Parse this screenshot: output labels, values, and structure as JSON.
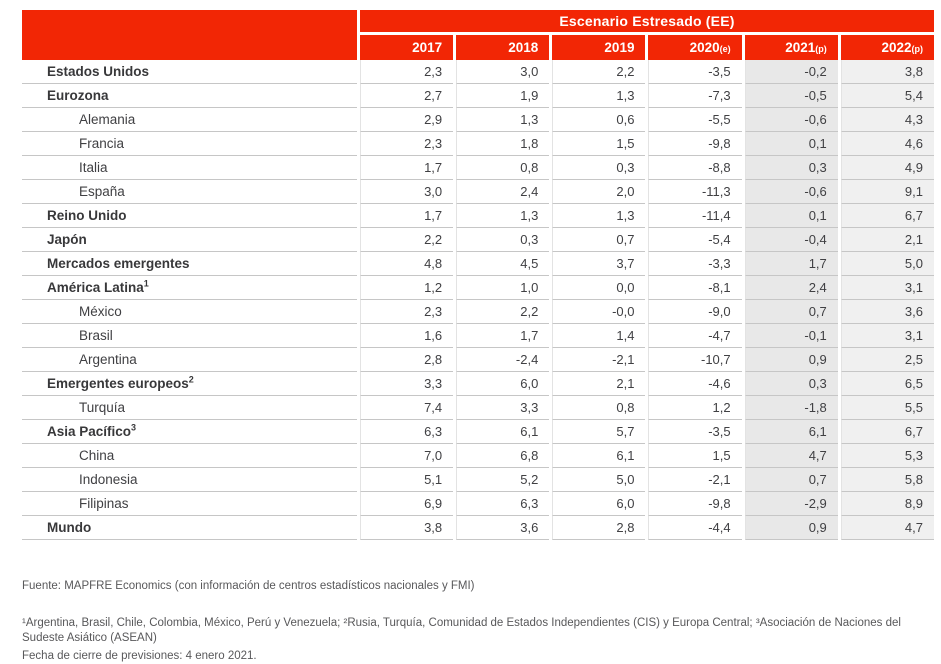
{
  "colors": {
    "accent_red": "#f22605",
    "shaded_column_2021": "#e8e8e8",
    "shaded_column_2022": "#f0f0f0",
    "row_line": "#c6c6c6",
    "text": "#404043",
    "footer_text": "#58585a"
  },
  "table": {
    "header_title": "Escenario Estresado (EE)",
    "columns": [
      {
        "year": "2017",
        "suffix": ""
      },
      {
        "year": "2018",
        "suffix": ""
      },
      {
        "year": "2019",
        "suffix": ""
      },
      {
        "year": "2020",
        "suffix": "(e)"
      },
      {
        "year": "2021",
        "suffix": "(p)"
      },
      {
        "year": "2022",
        "suffix": "(p)"
      }
    ],
    "rows": [
      {
        "label": "Estados Unidos",
        "sup": "",
        "bold": true,
        "indent": false,
        "values": [
          "2,3",
          "3,0",
          "2,2",
          "-3,5",
          "-0,2",
          "3,8"
        ]
      },
      {
        "label": "Eurozona",
        "sup": "",
        "bold": true,
        "indent": false,
        "values": [
          "2,7",
          "1,9",
          "1,3",
          "-7,3",
          "-0,5",
          "5,4"
        ]
      },
      {
        "label": "Alemania",
        "sup": "",
        "bold": false,
        "indent": true,
        "values": [
          "2,9",
          "1,3",
          "0,6",
          "-5,5",
          "-0,6",
          "4,3"
        ]
      },
      {
        "label": "Francia",
        "sup": "",
        "bold": false,
        "indent": true,
        "values": [
          "2,3",
          "1,8",
          "1,5",
          "-9,8",
          "0,1",
          "4,6"
        ]
      },
      {
        "label": "Italia",
        "sup": "",
        "bold": false,
        "indent": true,
        "values": [
          "1,7",
          "0,8",
          "0,3",
          "-8,8",
          "0,3",
          "4,9"
        ]
      },
      {
        "label": "España",
        "sup": "",
        "bold": false,
        "indent": true,
        "values": [
          "3,0",
          "2,4",
          "2,0",
          "-11,3",
          "-0,6",
          "9,1"
        ]
      },
      {
        "label": "Reino Unido",
        "sup": "",
        "bold": true,
        "indent": false,
        "values": [
          "1,7",
          "1,3",
          "1,3",
          "-11,4",
          "0,1",
          "6,7"
        ]
      },
      {
        "label": "Japón",
        "sup": "",
        "bold": true,
        "indent": false,
        "values": [
          "2,2",
          "0,3",
          "0,7",
          "-5,4",
          "-0,4",
          "2,1"
        ]
      },
      {
        "label": "Mercados emergentes",
        "sup": "",
        "bold": true,
        "indent": false,
        "values": [
          "4,8",
          "4,5",
          "3,7",
          "-3,3",
          "1,7",
          "5,0"
        ]
      },
      {
        "label": "América Latina",
        "sup": "1",
        "bold": true,
        "indent": false,
        "values": [
          "1,2",
          "1,0",
          "0,0",
          "-8,1",
          "2,4",
          "3,1"
        ]
      },
      {
        "label": "México",
        "sup": "",
        "bold": false,
        "indent": true,
        "values": [
          "2,3",
          "2,2",
          "-0,0",
          "-9,0",
          "0,7",
          "3,6"
        ]
      },
      {
        "label": "Brasil",
        "sup": "",
        "bold": false,
        "indent": true,
        "values": [
          "1,6",
          "1,7",
          "1,4",
          "-4,7",
          "-0,1",
          "3,1"
        ]
      },
      {
        "label": "Argentina",
        "sup": "",
        "bold": false,
        "indent": true,
        "values": [
          "2,8",
          "-2,4",
          "-2,1",
          "-10,7",
          "0,9",
          "2,5"
        ]
      },
      {
        "label": "Emergentes europeos",
        "sup": "2",
        "bold": true,
        "indent": false,
        "values": [
          "3,3",
          "6,0",
          "2,1",
          "-4,6",
          "0,3",
          "6,5"
        ]
      },
      {
        "label": "Turquía",
        "sup": "",
        "bold": false,
        "indent": true,
        "values": [
          "7,4",
          "3,3",
          "0,8",
          "1,2",
          "-1,8",
          "5,5"
        ]
      },
      {
        "label": "Asia Pacífico",
        "sup": "3",
        "bold": true,
        "indent": false,
        "values": [
          "6,3",
          "6,1",
          "5,7",
          "-3,5",
          "6,1",
          "6,7"
        ]
      },
      {
        "label": "China",
        "sup": "",
        "bold": false,
        "indent": true,
        "values": [
          "7,0",
          "6,8",
          "6,1",
          "1,5",
          "4,7",
          "5,3"
        ]
      },
      {
        "label": "Indonesia",
        "sup": "",
        "bold": false,
        "indent": true,
        "values": [
          "5,1",
          "5,2",
          "5,0",
          "-2,1",
          "0,7",
          "5,8"
        ]
      },
      {
        "label": "Filipinas",
        "sup": "",
        "bold": false,
        "indent": true,
        "values": [
          "6,9",
          "6,3",
          "6,0",
          "-9,8",
          "-2,9",
          "8,9"
        ]
      },
      {
        "label": "Mundo",
        "sup": "",
        "bold": true,
        "indent": false,
        "values": [
          "3,8",
          "3,6",
          "2,8",
          "-4,4",
          "0,9",
          "4,7"
        ]
      }
    ]
  },
  "footer": {
    "source": "Fuente: MAPFRE Economics (con información de centros estadísticos nacionales y FMI)",
    "footnote": "¹Argentina, Brasil, Chile, Colombia, México, Perú y Venezuela; ²Rusia, Turquía, Comunidad de Estados Independientes (CIS) y Europa Central; ³Asociación de Naciones del Sudeste Asiático (ASEAN)",
    "closing_date": "Fecha de cierre de previsiones: 4 enero 2021."
  },
  "chart_data": {
    "type": "table",
    "title": "Escenario Estresado (EE)",
    "columns": [
      "2017",
      "2018",
      "2019",
      "2020(e)",
      "2021(p)",
      "2022(p)"
    ],
    "rows": [
      {
        "label": "Estados Unidos",
        "values": [
          2.3,
          3.0,
          2.2,
          -3.5,
          -0.2,
          3.8
        ]
      },
      {
        "label": "Eurozona",
        "values": [
          2.7,
          1.9,
          1.3,
          -7.3,
          -0.5,
          5.4
        ]
      },
      {
        "label": "Alemania",
        "values": [
          2.9,
          1.3,
          0.6,
          -5.5,
          -0.6,
          4.3
        ]
      },
      {
        "label": "Francia",
        "values": [
          2.3,
          1.8,
          1.5,
          -9.8,
          0.1,
          4.6
        ]
      },
      {
        "label": "Italia",
        "values": [
          1.7,
          0.8,
          0.3,
          -8.8,
          0.3,
          4.9
        ]
      },
      {
        "label": "España",
        "values": [
          3.0,
          2.4,
          2.0,
          -11.3,
          -0.6,
          9.1
        ]
      },
      {
        "label": "Reino Unido",
        "values": [
          1.7,
          1.3,
          1.3,
          -11.4,
          0.1,
          6.7
        ]
      },
      {
        "label": "Japón",
        "values": [
          2.2,
          0.3,
          0.7,
          -5.4,
          -0.4,
          2.1
        ]
      },
      {
        "label": "Mercados emergentes",
        "values": [
          4.8,
          4.5,
          3.7,
          -3.3,
          1.7,
          5.0
        ]
      },
      {
        "label": "América Latina¹",
        "values": [
          1.2,
          1.0,
          0.0,
          -8.1,
          2.4,
          3.1
        ]
      },
      {
        "label": "México",
        "values": [
          2.3,
          2.2,
          -0.0,
          -9.0,
          0.7,
          3.6
        ]
      },
      {
        "label": "Brasil",
        "values": [
          1.6,
          1.7,
          1.4,
          -4.7,
          -0.1,
          3.1
        ]
      },
      {
        "label": "Argentina",
        "values": [
          2.8,
          -2.4,
          -2.1,
          -10.7,
          0.9,
          2.5
        ]
      },
      {
        "label": "Emergentes europeos²",
        "values": [
          3.3,
          6.0,
          2.1,
          -4.6,
          0.3,
          6.5
        ]
      },
      {
        "label": "Turquía",
        "values": [
          7.4,
          3.3,
          0.8,
          1.2,
          -1.8,
          5.5
        ]
      },
      {
        "label": "Asia Pacífico³",
        "values": [
          6.3,
          6.1,
          5.7,
          -3.5,
          6.1,
          6.7
        ]
      },
      {
        "label": "China",
        "values": [
          7.0,
          6.8,
          6.1,
          1.5,
          4.7,
          5.3
        ]
      },
      {
        "label": "Indonesia",
        "values": [
          5.1,
          5.2,
          5.0,
          -2.1,
          0.7,
          5.8
        ]
      },
      {
        "label": "Filipinas",
        "values": [
          6.9,
          6.3,
          6.0,
          -9.8,
          -2.9,
          8.9
        ]
      },
      {
        "label": "Mundo",
        "values": [
          3.8,
          3.6,
          2.8,
          -4.4,
          0.9,
          4.7
        ]
      }
    ]
  }
}
